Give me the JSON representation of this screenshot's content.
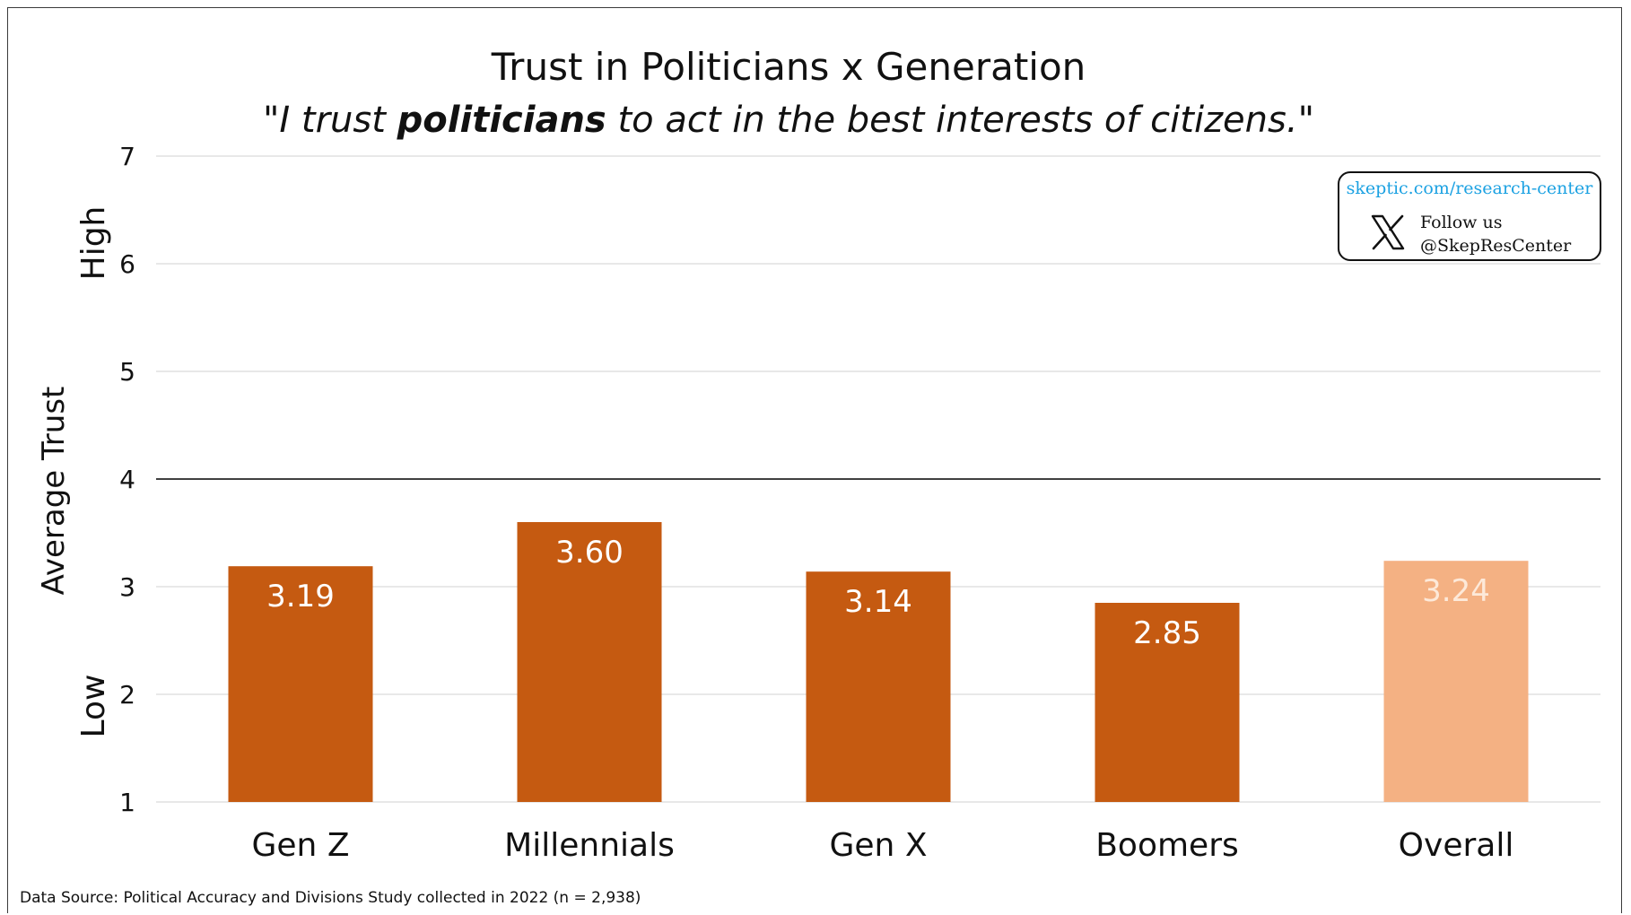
{
  "colors": {
    "bar": "#c55a11",
    "bar_overall": "#f4b183",
    "label_on_bar": "#ffffff",
    "label_on_overall": "#fde9d9",
    "grid": "#d9d9d9",
    "reference_line": "#000000"
  },
  "brand": {
    "url": "skeptic.com/research-center",
    "follow_line1": "Follow us",
    "follow_line2": "@SkepResCenter",
    "icon": "x-logo-icon"
  },
  "source_note": "Data Source: Political Accuracy and Divisions Study collected in 2022 (n = 2,938)",
  "chart_data": {
    "type": "bar",
    "title": "Trust in Politicians x Generation",
    "subtitle_parts": [
      "\"I trust ",
      "politicians",
      " to act in the best interests of citizens.\""
    ],
    "ylabel": "Average Trust",
    "y_low_label": "Low",
    "y_high_label": "High",
    "ylim": [
      1,
      7
    ],
    "yticks": [
      1,
      2,
      3,
      4,
      5,
      6,
      7
    ],
    "reference_line": 4,
    "grid": true,
    "categories": [
      "Gen Z",
      "Millennials",
      "Gen X",
      "Boomers",
      "Overall"
    ],
    "values": [
      3.19,
      3.6,
      3.14,
      2.85,
      3.24
    ],
    "value_labels": [
      "3.19",
      "3.60",
      "3.14",
      "2.85",
      "3.24"
    ],
    "highlight_category": "Overall"
  }
}
